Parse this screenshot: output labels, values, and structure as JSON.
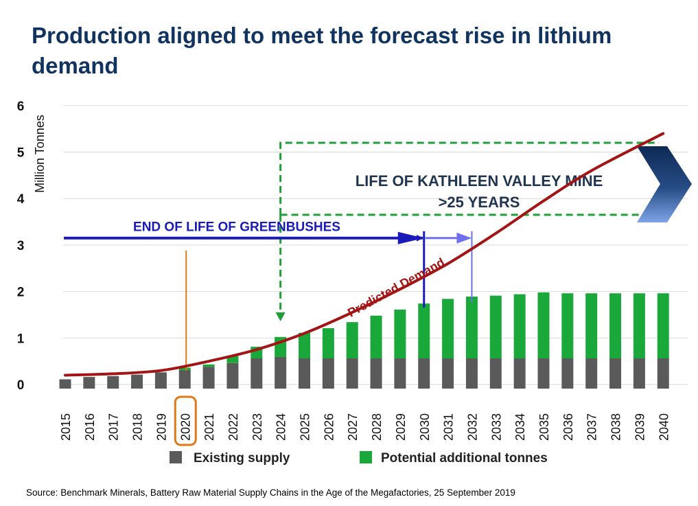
{
  "title": "Production aligned to meet the forecast rise in lithium demand",
  "source": "Source: Benchmark Minerals, Battery Raw Material Supply Chains in the Age of the Megafactories, 25 September 2019",
  "colors": {
    "title": "#10345f",
    "existing": "#5a5a5a",
    "potential": "#1aa83a",
    "demand": "#a31515",
    "greenbushes": "#1a1ab8",
    "greenbushes_ext": "#7070ee",
    "dashed_box": "#1f9e3a",
    "highlight": "#e0781a"
  },
  "chart_data": {
    "type": "bar",
    "stacked": true,
    "ylabel": "Million Tonnes",
    "ylim": [
      0,
      6
    ],
    "y_ticks": [
      0,
      1,
      2,
      3,
      4,
      5,
      6
    ],
    "grid": true,
    "legend_position": "bottom",
    "categories": [
      "2015",
      "2016",
      "2017",
      "2018",
      "2019",
      "2020",
      "2021",
      "2022",
      "2023",
      "2024",
      "2025",
      "2026",
      "2027",
      "2028",
      "2029",
      "2030",
      "2031",
      "2032",
      "2033",
      "2034",
      "2035",
      "2036",
      "2037",
      "2038",
      "2039",
      "2040"
    ],
    "series": [
      {
        "name": "Existing supply",
        "color": "#5a5a5a",
        "values": [
          0.2,
          0.25,
          0.27,
          0.3,
          0.35,
          0.4,
          0.47,
          0.55,
          0.65,
          0.68,
          0.65,
          0.65,
          0.65,
          0.65,
          0.65,
          0.65,
          0.65,
          0.65,
          0.65,
          0.65,
          0.65,
          0.65,
          0.65,
          0.65,
          0.65,
          0.65
        ]
      },
      {
        "name": "Potential additional tonnes",
        "color": "#1aa83a",
        "values": [
          0,
          0,
          0,
          0,
          0,
          0.05,
          0.05,
          0.15,
          0.25,
          0.43,
          0.55,
          0.65,
          0.78,
          0.92,
          1.05,
          1.18,
          1.28,
          1.33,
          1.35,
          1.38,
          1.42,
          1.4,
          1.4,
          1.4,
          1.4,
          1.4
        ]
      }
    ],
    "demand_curve": {
      "label": "Predicted Demand",
      "x": [
        "2015",
        "2017",
        "2019",
        "2021",
        "2023",
        "2025",
        "2027",
        "2029",
        "2031",
        "2033",
        "2035",
        "2037",
        "2040"
      ],
      "y": [
        0.2,
        0.23,
        0.3,
        0.5,
        0.75,
        1.1,
        1.55,
        2.05,
        2.6,
        3.25,
        3.95,
        4.6,
        5.4
      ]
    },
    "annotations": {
      "greenbushes": {
        "label": "END OF LIFE OF GREENBUSHES",
        "y": 3.15,
        "end_year": "2030",
        "extended_end_year": "2032"
      },
      "kathleen": {
        "line1": "LIFE OF KATHLEEN VALLEY MINE",
        "line2": ">25 YEARS",
        "start_year": "2024",
        "y_bottom": 3.65,
        "y_top": 5.2
      },
      "highlight_year": "2020"
    }
  }
}
